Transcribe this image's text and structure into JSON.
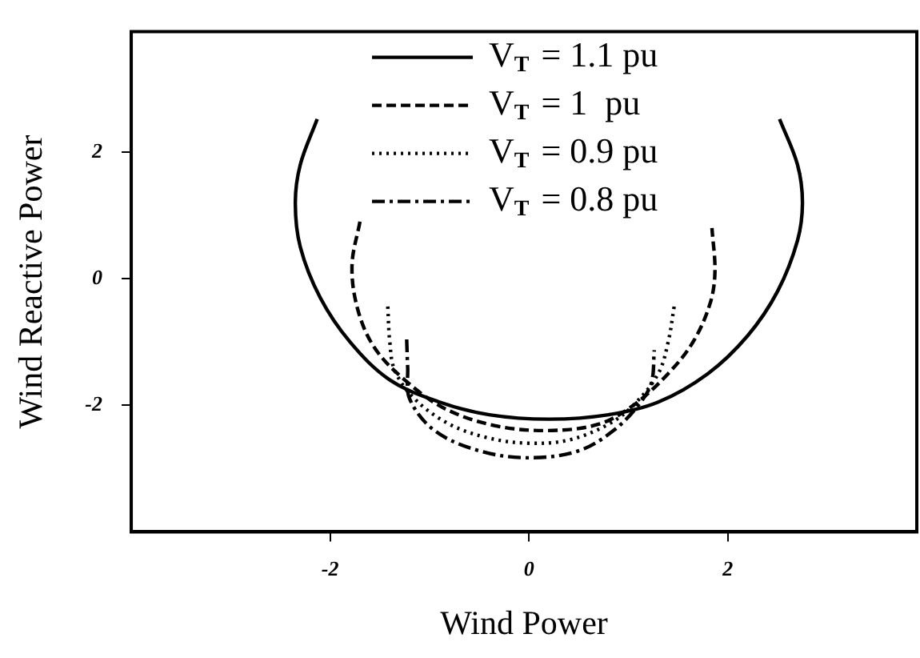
{
  "chart_data": {
    "type": "line",
    "xlabel": "Wind Power",
    "ylabel": "Wind Reactive Power",
    "xlim": [
      -4,
      3.9
    ],
    "ylim": [
      -4,
      3.9
    ],
    "xticks": [
      -2,
      0,
      2
    ],
    "yticks": [
      -2,
      0,
      2
    ],
    "grid": false,
    "legend": "top",
    "marker": "none",
    "series": [
      {
        "name": "V$_{T}$ = 1.1 pu",
        "color": "#000000",
        "line_style": "solid",
        "x": [
          -2.13,
          -2.3,
          -2.35,
          -2.3,
          -2.1,
          -1.8,
          -1.4,
          -0.9,
          -0.4,
          0.2,
          0.8,
          1.3,
          1.8,
          2.2,
          2.5,
          2.7,
          2.75,
          2.7,
          2.52
        ],
        "values": [
          2.52,
          1.8,
          1.2,
          0.5,
          -0.3,
          -1.0,
          -1.6,
          -1.95,
          -2.15,
          -2.22,
          -2.15,
          -1.95,
          -1.5,
          -0.9,
          -0.2,
          0.6,
          1.2,
          1.8,
          2.52
        ]
      },
      {
        "name": "V$_{T}$ = 1  pu",
        "color": "#000000",
        "line_style": "dashed",
        "x": [
          -1.7,
          -1.78,
          -1.72,
          -1.55,
          -1.25,
          -0.85,
          -0.35,
          0.19,
          0.7,
          1.05,
          1.4,
          1.65,
          1.82,
          1.87,
          1.84
        ],
        "values": [
          0.9,
          0.2,
          -0.5,
          -1.1,
          -1.6,
          -2.05,
          -2.32,
          -2.4,
          -2.3,
          -2.0,
          -1.5,
          -1.0,
          -0.4,
          0.1,
          0.8
        ]
      },
      {
        "name": "V$_{T}$ = 0.9 pu",
        "color": "#000000",
        "line_style": "dotted",
        "x": [
          -1.42,
          -1.4,
          -1.35,
          -1.15,
          -0.8,
          -0.4,
          0.0,
          0.4,
          0.8,
          1.05,
          1.3,
          1.4,
          1.46
        ],
        "values": [
          -0.44,
          -1.0,
          -1.45,
          -1.9,
          -2.3,
          -2.52,
          -2.6,
          -2.55,
          -2.3,
          -2.0,
          -1.5,
          -1.0,
          -0.44
        ]
      },
      {
        "name": "V$_{T}$ = 0.8 pu",
        "color": "#000000",
        "line_style": "dashdot",
        "x": [
          -1.23,
          -1.22,
          -1.2,
          -0.95,
          -0.5,
          0.0,
          0.5,
          0.85,
          1.1,
          1.23,
          1.26
        ],
        "values": [
          -0.96,
          -1.4,
          -1.9,
          -2.4,
          -2.72,
          -2.83,
          -2.72,
          -2.4,
          -2.0,
          -1.65,
          -1.13
        ]
      }
    ]
  }
}
